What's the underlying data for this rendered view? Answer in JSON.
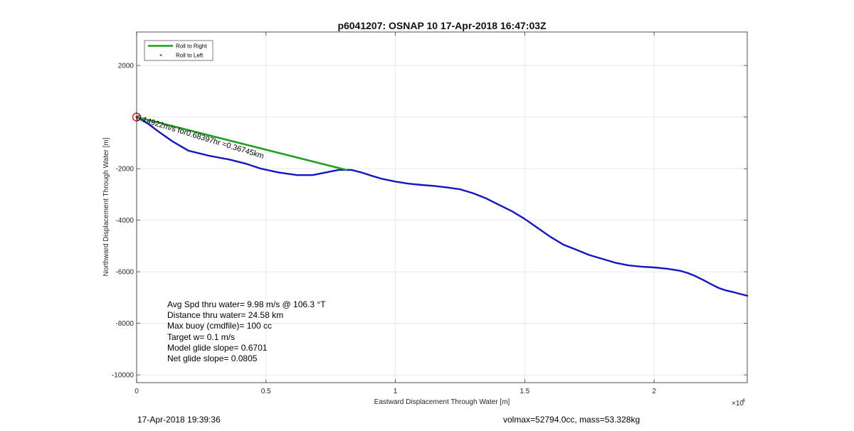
{
  "chart_data": {
    "type": "line",
    "title": "p6041207: OSNAP 10 17-Apr-2018 16:47:03Z",
    "xlabel": "Eastward Displacement Through Water [m]",
    "ylabel": "Northward Displacement Through Water [m]",
    "x_exponent_label": "×10",
    "x_exponent_power": "4",
    "xlim": [
      0,
      23600
    ],
    "ylim": [
      -10300,
      3300
    ],
    "grid": true,
    "x_ticks": [
      {
        "value": 0,
        "label": "0"
      },
      {
        "value": 5000,
        "label": "0.5"
      },
      {
        "value": 10000,
        "label": "1"
      },
      {
        "value": 15000,
        "label": "1.5"
      },
      {
        "value": 20000,
        "label": "2"
      }
    ],
    "y_ticks": [
      {
        "value": 2000,
        "label": "2000"
      },
      {
        "value": 0,
        "label": ""
      },
      {
        "value": -2000,
        "label": "-2000"
      },
      {
        "value": -4000,
        "label": "-4000"
      },
      {
        "value": -6000,
        "label": "-6000"
      },
      {
        "value": -8000,
        "label": "-8000"
      },
      {
        "value": -10000,
        "label": "-10000"
      }
    ],
    "legend": {
      "placement": "top-left",
      "entries": [
        {
          "label": "Roll to Right",
          "color": "#1aa01a",
          "marker": "line"
        },
        {
          "label": "Roll to Left",
          "color": "#d21f1f",
          "marker": "dot"
        }
      ]
    },
    "series": [
      {
        "color": "#1414c8",
        "x": [
          0,
          200,
          500,
          900,
          1400,
          2000,
          2800,
          3600,
          4200,
          4800,
          5500,
          6200,
          6800,
          7300,
          7800,
          8300,
          8700,
          9100,
          9500,
          10000,
          10500,
          11000,
          11500,
          12000,
          12500,
          13000,
          13500,
          14000,
          14500,
          15000,
          15500,
          16000,
          16500,
          17000,
          17500,
          18000,
          18500,
          19000,
          19500,
          20000,
          20500,
          21000,
          21300,
          21600,
          21900,
          22200,
          22500,
          22800,
          23100,
          23400,
          23600
        ],
        "y": [
          0,
          -100,
          -300,
          -600,
          -950,
          -1300,
          -1500,
          -1650,
          -1800,
          -2000,
          -2150,
          -2250,
          -2250,
          -2150,
          -2050,
          -2050,
          -2150,
          -2280,
          -2400,
          -2500,
          -2580,
          -2630,
          -2670,
          -2730,
          -2800,
          -2950,
          -3150,
          -3400,
          -3650,
          -3950,
          -4300,
          -4650,
          -4950,
          -5150,
          -5350,
          -5500,
          -5650,
          -5750,
          -5800,
          -5830,
          -5880,
          -5960,
          -6050,
          -6170,
          -6320,
          -6480,
          -6630,
          -6730,
          -6800,
          -6880,
          -6930
        ]
      },
      {
        "color": "#1aa01a",
        "x": [
          0,
          8100
        ],
        "y": [
          0,
          -2050
        ]
      }
    ],
    "start_marker": {
      "x": 0,
      "y": 0,
      "color": "#d21f1f"
    },
    "segment_annotation": {
      "text": "0.14922m/s for0.68397hr =0.36745km",
      "x": 0,
      "y": 0,
      "rotation_deg": 17
    },
    "annotations": [
      "Avg Spd thru water=  9.98 m/s @ 106.3 °T",
      "Distance thru water= 24.58 km",
      "Max buoy (cmdfile)= 100 cc",
      "Target w= 0.1 m/s",
      "Model glide slope= 0.6701",
      "Net glide slope= 0.0805"
    ]
  },
  "footer": {
    "timestamp": "17-Apr-2018 19:39:36",
    "mass_info": "volmax=52794.0cc, mass=53.328kg"
  }
}
